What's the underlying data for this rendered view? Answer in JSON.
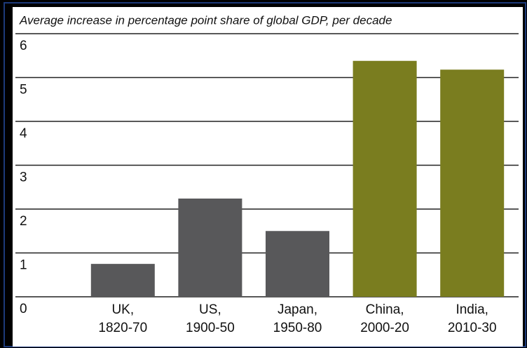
{
  "chart_data": {
    "type": "bar",
    "title": "Average increase in percentage point share of global GDP, per decade",
    "categories": [
      [
        "UK,",
        "1820-70"
      ],
      [
        "US,",
        "1900-50"
      ],
      [
        "Japan,",
        "1950-80"
      ],
      [
        "China,",
        "2000-20"
      ],
      [
        "India,",
        "2010-30"
      ]
    ],
    "values": [
      0.75,
      2.24,
      1.5,
      5.38,
      5.18
    ],
    "colors": [
      "#58585a",
      "#58585a",
      "#58585a",
      "#7a7d1f",
      "#7a7d1f"
    ],
    "ylim": [
      0,
      6
    ],
    "yticks": [
      0,
      1,
      2,
      3,
      4,
      5,
      6
    ],
    "grid": true
  }
}
